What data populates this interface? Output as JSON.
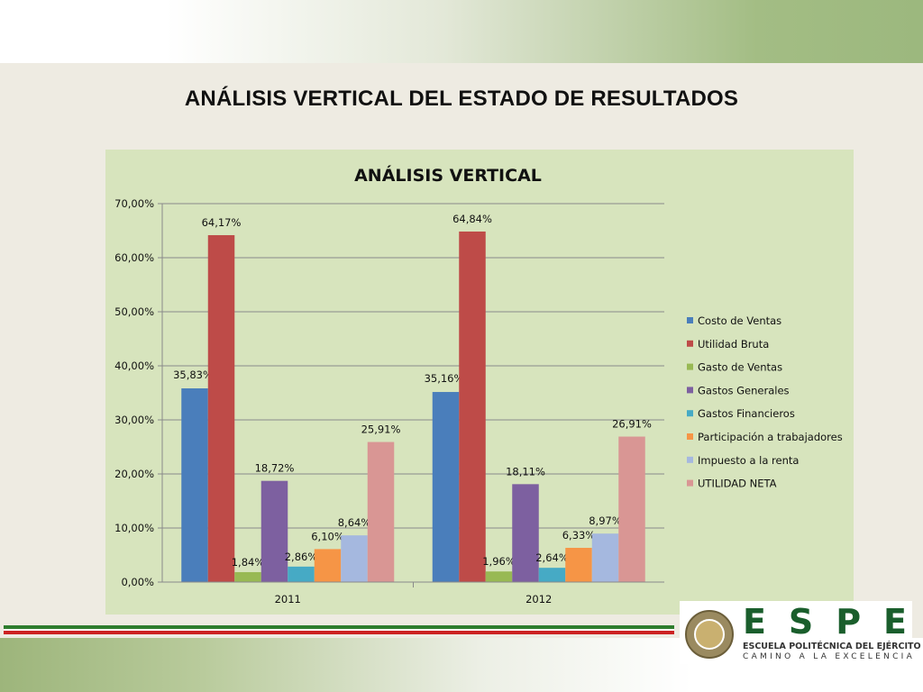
{
  "slide": {
    "title": "ANÁLISIS VERTICAL  DEL ESTADO DE RESULTADOS"
  },
  "chart_data": {
    "type": "bar",
    "title": "ANÁLISIS VERTICAL",
    "categories": [
      "2011",
      "2012"
    ],
    "ylim": [
      0,
      70
    ],
    "yticks": [
      "0,00%",
      "10,00%",
      "20,00%",
      "30,00%",
      "40,00%",
      "50,00%",
      "60,00%",
      "70,00%"
    ],
    "grid": true,
    "legend_position": "right",
    "series": [
      {
        "name": "Costo de Ventas",
        "color": "#4a7ebb",
        "values": [
          35.83,
          35.16
        ],
        "labels": [
          "35,83%",
          "35,16%"
        ]
      },
      {
        "name": "Utilidad Bruta",
        "color": "#be4b48",
        "values": [
          64.17,
          64.84
        ],
        "labels": [
          "64,17%",
          "64,84%"
        ]
      },
      {
        "name": "Gasto de  Ventas",
        "color": "#98b954",
        "values": [
          1.84,
          1.96
        ],
        "labels": [
          "1,84%",
          "1,96%"
        ]
      },
      {
        "name": "Gastos Generales",
        "color": "#7d60a0",
        "values": [
          18.72,
          18.11
        ],
        "labels": [
          "18,72%",
          "18,11%"
        ]
      },
      {
        "name": "Gastos Financieros",
        "color": "#46aac5",
        "values": [
          2.86,
          2.64
        ],
        "labels": [
          "2,86%",
          "2,64%"
        ]
      },
      {
        "name": "Participación a trabajadores",
        "color": "#f69546",
        "values": [
          6.1,
          6.33
        ],
        "labels": [
          "6,10%",
          "6,33%"
        ]
      },
      {
        "name": "Impuesto a la renta",
        "color": "#a5b8df",
        "values": [
          8.64,
          8.97
        ],
        "labels": [
          "8,64%",
          "8,97%"
        ]
      },
      {
        "name": "UTILIDAD NETA",
        "color": "#d99694",
        "values": [
          25.91,
          26.91
        ],
        "labels": [
          "25,91%",
          "26,91%"
        ]
      }
    ]
  },
  "logo": {
    "letters": [
      "E",
      "S",
      "P",
      "E"
    ],
    "name": "ESCUELA POLITÉCNICA DEL EJÉRCITO",
    "motto": "CAMINO A LA EXCELENCIA"
  },
  "colors": {
    "stripe_green": "#2e7d2e",
    "stripe_red": "#cc2222"
  }
}
